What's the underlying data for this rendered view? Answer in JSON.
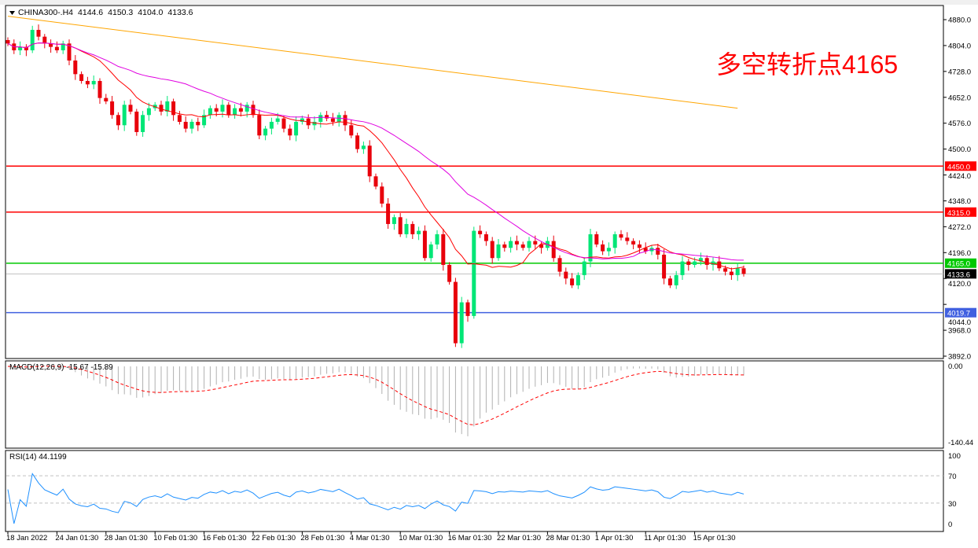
{
  "header": {
    "symbol": "CHINA300-.H4",
    "open": "4144.6",
    "high": "4150.3",
    "low": "4104.0",
    "close": "4133.6"
  },
  "annotation": "多空转折点4165",
  "colors": {
    "bull": "#00e676",
    "bear": "#e8000b",
    "ma_fast": "#ff0000",
    "ma_mid": "#e000e0",
    "ma_long": "#ffa500",
    "level_red": "#ff0000",
    "level_green": "#00c800",
    "level_blue": "#4060e0",
    "macd_hist": "#b0b0b0",
    "macd_signal": "#ff0000",
    "rsi": "#1e90ff"
  },
  "chart_data": {
    "type": "candlestick",
    "price_axis": {
      "ticks": [
        "4880.0",
        "4804.0",
        "4728.0",
        "4652.0",
        "4576.0",
        "4500.0",
        "4424.0",
        "4348.0",
        "4272.0",
        "4196.0",
        "4120.0",
        "4044.0",
        "3968.0",
        "3892.0"
      ],
      "ylim": [
        3892,
        4880
      ]
    },
    "time_labels": [
      "18 Jan 2022",
      "24 Jan 01:30",
      "28 Jan 01:30",
      "10 Feb 01:30",
      "16 Feb 01:30",
      "22 Feb 01:30",
      "28 Feb 01:30",
      "4 Mar 01:30",
      "10 Mar 01:30",
      "16 Mar 01:30",
      "22 Mar 01:30",
      "28 Mar 01:30",
      "1 Apr 01:30",
      "11 Apr 01:30",
      "15 Apr 01:30"
    ],
    "closes": [
      4810,
      4790,
      4800,
      4790,
      4850,
      4830,
      4810,
      4800,
      4790,
      4810,
      4760,
      4720,
      4700,
      4690,
      4700,
      4650,
      4640,
      4600,
      4570,
      4630,
      4610,
      4550,
      4600,
      4620,
      4630,
      4610,
      4640,
      4600,
      4580,
      4560,
      4580,
      4570,
      4600,
      4620,
      4610,
      4630,
      4600,
      4620,
      4610,
      4630,
      4600,
      4540,
      4560,
      4580,
      4590,
      4560,
      4540,
      4580,
      4590,
      4570,
      4580,
      4600,
      4590,
      4580,
      4600,
      4570,
      4540,
      4500,
      4510,
      4420,
      4390,
      4340,
      4280,
      4300,
      4250,
      4280,
      4250,
      4260,
      4180,
      4220,
      4250,
      4160,
      4110,
      3930,
      4050,
      4010,
      4260,
      4250,
      4230,
      4180,
      4220,
      4210,
      4230,
      4220,
      4210,
      4230,
      4220,
      4210,
      4230,
      4180,
      4140,
      4120,
      4100,
      4130,
      4170,
      4250,
      4220,
      4200,
      4210,
      4250,
      4240,
      4230,
      4220,
      4210,
      4200,
      4210,
      4190,
      4120,
      4100,
      4130,
      4170,
      4160,
      4170,
      4180,
      4160,
      4170,
      4150,
      4140,
      4130,
      4150,
      4133.6
    ],
    "ma_long": {
      "start": 4890,
      "end": 4620
    },
    "levels": [
      {
        "value": 4450.0,
        "label": "4450.0",
        "color": "red"
      },
      {
        "value": 4315.0,
        "label": "4315.0",
        "color": "red"
      },
      {
        "value": 4165.0,
        "label": "4165.0",
        "color": "green"
      },
      {
        "value": 4019.7,
        "label": "4019.7",
        "color": "blue"
      }
    ],
    "current": {
      "value": 4133.6,
      "label": "4133.6"
    },
    "macd": {
      "label": "MACD(12,26,9) -15.67 -15.89",
      "ticks": [
        "0.00",
        "-140.44"
      ],
      "ylim": [
        -140.44,
        9
      ]
    },
    "rsi": {
      "label": "RSI(14) 44.1199",
      "ticks": [
        "100",
        "70",
        "30",
        "0"
      ],
      "levels": [
        70,
        30
      ]
    }
  }
}
